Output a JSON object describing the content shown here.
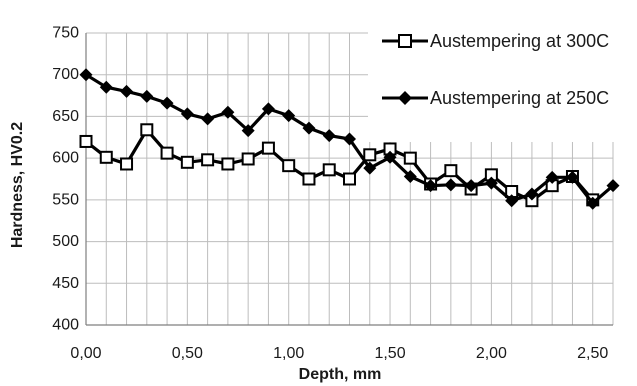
{
  "chart_data": {
    "type": "line",
    "xlabel": "Depth, mm",
    "ylabel": "Hardness, HV0.2",
    "xlim": [
      0,
      2.6
    ],
    "ylim": [
      400,
      750
    ],
    "xticks": [
      0,
      0.5,
      1.0,
      1.5,
      2.0,
      2.5
    ],
    "xtick_labels": [
      "0,00",
      "0,50",
      "1,00",
      "1,50",
      "2,00",
      "2,50"
    ],
    "yticks": [
      400,
      450,
      500,
      550,
      600,
      650,
      700,
      750
    ],
    "ytick_labels": [
      "400",
      "450",
      "500",
      "550",
      "600",
      "650",
      "700",
      "750"
    ],
    "grid": true,
    "legend_position": "top-right",
    "series": [
      {
        "name": "Austempering at 300C",
        "marker": "square-open",
        "color": "#000000",
        "x": [
          0.0,
          0.1,
          0.2,
          0.3,
          0.4,
          0.5,
          0.6,
          0.7,
          0.8,
          0.9,
          1.0,
          1.1,
          1.2,
          1.3,
          1.4,
          1.5,
          1.6,
          1.7,
          1.8,
          1.9,
          2.0,
          2.1,
          2.2,
          2.3,
          2.4,
          2.5
        ],
        "y": [
          620,
          601,
          593,
          634,
          606,
          595,
          598,
          593,
          599,
          612,
          591,
          575,
          586,
          575,
          604,
          611,
          600,
          569,
          585,
          563,
          580,
          560,
          549,
          567,
          578,
          550
        ]
      },
      {
        "name": "Austempering at 250C",
        "marker": "diamond-filled",
        "color": "#000000",
        "x": [
          0.0,
          0.1,
          0.2,
          0.3,
          0.4,
          0.5,
          0.6,
          0.7,
          0.8,
          0.9,
          1.0,
          1.1,
          1.2,
          1.3,
          1.4,
          1.5,
          1.6,
          1.7,
          1.8,
          1.9,
          2.0,
          2.1,
          2.2,
          2.3,
          2.4,
          2.5,
          2.6
        ],
        "y": [
          700,
          685,
          680,
          674,
          666,
          653,
          647,
          655,
          633,
          659,
          651,
          636,
          627,
          623,
          588,
          601,
          578,
          567,
          568,
          567,
          570,
          549,
          557,
          577,
          577,
          546,
          567
        ]
      }
    ]
  }
}
